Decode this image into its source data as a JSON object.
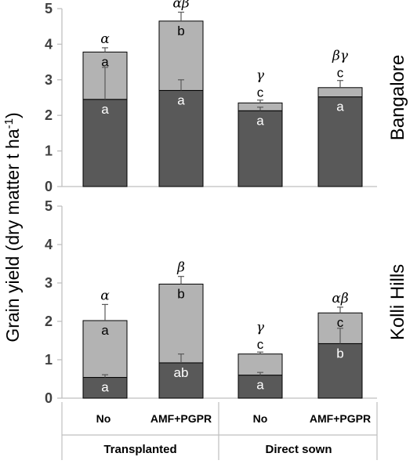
{
  "ylabel": "Grain yield (dry matter t ha-1)",
  "ylabel_main": "Grain yield (dry matter t ha",
  "ylabel_sup": "-1",
  "ylabel_close": ")",
  "x_categories": [
    "No",
    "AMF+PGPR",
    "No",
    "AMF+PGPR"
  ],
  "x_groups": [
    "Transplanted",
    "Direct sown"
  ],
  "colors": {
    "lower": "#595959",
    "upper": "#b3b3b3",
    "axis": "#bfbfbf"
  },
  "chart_data": [
    {
      "type": "bar",
      "stacked": true,
      "panel": "Bangalore",
      "categories": [
        "No",
        "AMF+PGPR",
        "No",
        "AMF+PGPR"
      ],
      "groups": [
        "Transplanted",
        "Transplanted",
        "Direct sown",
        "Direct sown"
      ],
      "ylim": [
        0,
        5
      ],
      "yticks": [
        "0",
        "1",
        "2",
        "3",
        "4",
        "5"
      ],
      "series": [
        {
          "values": [
            2.45,
            2.7,
            2.13,
            2.52
          ],
          "err": [
            0.9,
            0.3,
            0.1,
            0
          ],
          "letters": [
            "a",
            "a",
            "a",
            "a"
          ]
        },
        {
          "values": [
            1.33,
            1.95,
            0.22,
            0.26
          ],
          "err": [
            0.12,
            0.25,
            0.08,
            0.2
          ],
          "letters": [
            "a",
            "b",
            "c",
            "c"
          ]
        }
      ],
      "total_letters": [
        "α",
        "αβ",
        "γ",
        "βγ"
      ]
    },
    {
      "type": "bar",
      "stacked": true,
      "panel": "Kolli Hills",
      "categories": [
        "No",
        "AMF+PGPR",
        "No",
        "AMF+PGPR"
      ],
      "groups": [
        "Transplanted",
        "Transplanted",
        "Direct sown",
        "Direct sown"
      ],
      "ylim": [
        0,
        5
      ],
      "yticks": [
        "0",
        "1",
        "2",
        "3",
        "4",
        "5"
      ],
      "series": [
        {
          "values": [
            0.54,
            0.92,
            0.6,
            1.42
          ],
          "err": [
            0.07,
            0.23,
            0.07,
            0.4
          ],
          "letters": [
            "a",
            "ab",
            "a",
            "b"
          ]
        },
        {
          "values": [
            1.48,
            2.05,
            0.55,
            0.8
          ],
          "err": [
            0.42,
            0.2,
            0.05,
            0.15
          ],
          "letters": [
            "a",
            "b",
            "c",
            "c"
          ]
        }
      ],
      "total_letters": [
        "α",
        "β",
        "γ",
        "αβ"
      ]
    }
  ]
}
